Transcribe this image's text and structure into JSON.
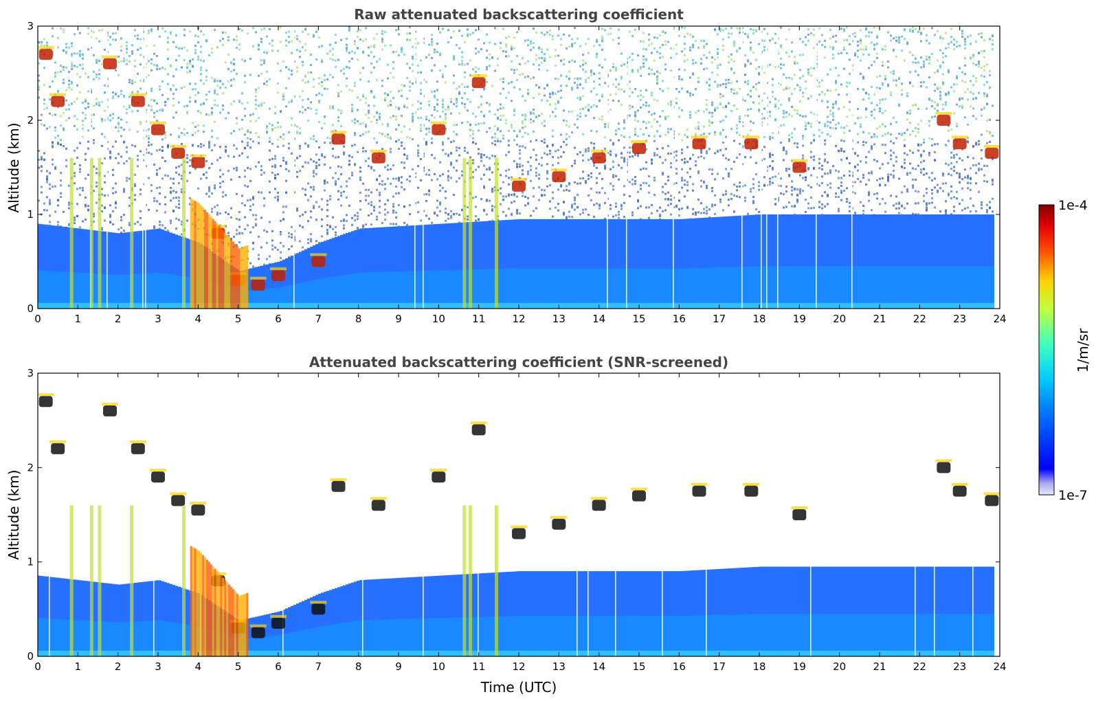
{
  "chart_data": [
    {
      "type": "heatmap",
      "title": "Raw attenuated backscattering coefficient",
      "xlabel": "",
      "ylabel": "Altitude (km)",
      "xlim": [
        0,
        24
      ],
      "ylim": [
        0,
        3
      ],
      "xticks": [
        0,
        1,
        2,
        3,
        4,
        5,
        6,
        7,
        8,
        9,
        10,
        11,
        12,
        13,
        14,
        15,
        16,
        17,
        18,
        19,
        20,
        21,
        22,
        23,
        24
      ],
      "yticks": [
        0,
        1,
        2,
        3
      ],
      "data_extent_hours": [
        0,
        23.85
      ],
      "layers": [
        {
          "feature": "aerosol/boundary layer",
          "top_km": [
            [
              0,
              0.9
            ],
            [
              1,
              0.85
            ],
            [
              2,
              0.8
            ],
            [
              3,
              0.85
            ],
            [
              4,
              0.7
            ],
            [
              5,
              0.4
            ],
            [
              6,
              0.5
            ],
            [
              7,
              0.7
            ],
            [
              8,
              0.85
            ],
            [
              10,
              0.9
            ],
            [
              12,
              0.95
            ],
            [
              14,
              0.95
            ],
            [
              16,
              0.95
            ],
            [
              18,
              1.0
            ],
            [
              20,
              1.0
            ],
            [
              22,
              1.0
            ],
            [
              23.85,
              1.0
            ]
          ]
        },
        {
          "feature": "cloud layer",
          "points_km": [
            [
              0.2,
              2.7
            ],
            [
              0.5,
              2.2
            ],
            [
              1.8,
              2.6
            ],
            [
              2.5,
              2.2
            ],
            [
              3.0,
              1.9
            ],
            [
              3.5,
              1.65
            ],
            [
              4.0,
              1.55
            ],
            [
              4.5,
              0.8
            ],
            [
              5.0,
              0.3
            ],
            [
              5.5,
              0.25
            ],
            [
              6.0,
              0.35
            ],
            [
              7.0,
              0.5
            ],
            [
              7.5,
              1.8
            ],
            [
              8.5,
              1.6
            ],
            [
              10.0,
              1.9
            ],
            [
              11.0,
              2.4
            ],
            [
              12.0,
              1.3
            ],
            [
              13.0,
              1.4
            ],
            [
              14.0,
              1.6
            ],
            [
              15.0,
              1.7
            ],
            [
              16.5,
              1.75
            ],
            [
              17.8,
              1.75
            ],
            [
              19.0,
              1.5
            ],
            [
              22.6,
              2.0
            ],
            [
              23.0,
              1.75
            ],
            [
              23.8,
              1.65
            ]
          ]
        }
      ]
    },
    {
      "type": "heatmap",
      "title": "Attenuated backscattering coefficient (SNR-screened)",
      "xlabel": "Time (UTC)",
      "ylabel": "Altitude (km)",
      "xlim": [
        0,
        24
      ],
      "ylim": [
        0,
        3
      ],
      "xticks": [
        0,
        1,
        2,
        3,
        4,
        5,
        6,
        7,
        8,
        9,
        10,
        11,
        12,
        13,
        14,
        15,
        16,
        17,
        18,
        19,
        20,
        21,
        22,
        23,
        24
      ],
      "yticks": [
        0,
        1,
        2,
        3
      ],
      "data_extent_hours": [
        0,
        23.85
      ]
    }
  ],
  "colorbar": {
    "label": "1/m/sr",
    "max_label": "1e-4",
    "min_label": "1e-7",
    "scale": "log",
    "range": [
      1e-07,
      0.0001
    ],
    "colormap": "jet",
    "colors": [
      "#e6e6fa",
      "#b0b0f0",
      "#0000ff",
      "#0080ff",
      "#00d0ff",
      "#40ff c0",
      "#c0ff40",
      "#ffd000",
      "#ff6000",
      "#e00000",
      "#800000"
    ]
  }
}
